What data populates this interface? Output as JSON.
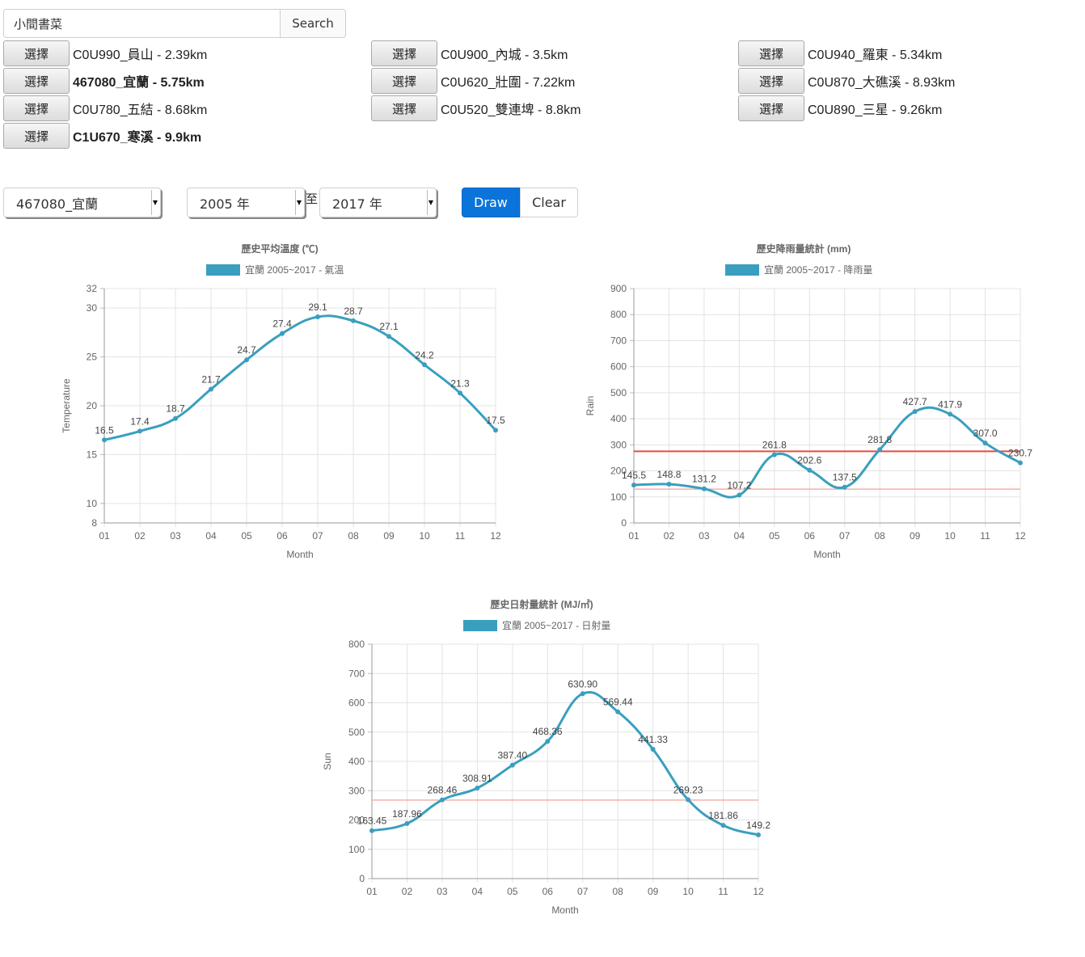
{
  "search": {
    "value": "小間書菜",
    "button_label": "Search"
  },
  "pick_label": "選擇",
  "stations": [
    {
      "label": "C0U990_員山 - 2.39km",
      "bold": false
    },
    {
      "label": "C0U900_內城 - 3.5km",
      "bold": false
    },
    {
      "label": "C0U940_羅東 - 5.34km",
      "bold": false
    },
    {
      "label": "467080_宜蘭 - 5.75km",
      "bold": true
    },
    {
      "label": "C0U620_壯圍 - 7.22km",
      "bold": false
    },
    {
      "label": "C0U870_大礁溪 - 8.93km",
      "bold": false
    },
    {
      "label": "C0U780_五結 - 8.68km",
      "bold": false
    },
    {
      "label": "C0U520_雙連埤 - 8.8km",
      "bold": false
    },
    {
      "label": "C0U890_三星 - 9.26km",
      "bold": false
    },
    {
      "label": "C1U670_寒溪 - 9.9km",
      "bold": true
    }
  ],
  "controls": {
    "station_select": "467080_宜蘭",
    "from_year": "2005 年",
    "to_label": "至",
    "to_year": "2017 年",
    "draw_label": "Draw",
    "clear_label": "Clear"
  },
  "colors": {
    "series": "#3a9fbf",
    "refline": "#e74c3c",
    "primary": "#0a74da"
  },
  "chart_data": [
    {
      "type": "line",
      "title": "歷史平均溫度 (℃)",
      "xlabel": "Month",
      "ylabel": "Temperature",
      "categories": [
        "01",
        "02",
        "03",
        "04",
        "05",
        "06",
        "07",
        "08",
        "09",
        "10",
        "11",
        "12"
      ],
      "ylim": [
        8,
        32
      ],
      "yticks": [
        8,
        10,
        15,
        20,
        25,
        30,
        32
      ],
      "grid": true,
      "legend_position": "top",
      "series": [
        {
          "name": "宜蘭 2005~2017 - 氣溫",
          "values": [
            16.5,
            17.4,
            18.7,
            21.7,
            24.7,
            27.4,
            29.1,
            28.7,
            27.1,
            24.2,
            21.3,
            17.5
          ],
          "labels": [
            "16.5",
            "17.4",
            "18.7",
            "21.7",
            "24.7",
            "27.4",
            "29.1",
            "28.7",
            "27.1",
            "24.2",
            "21.3",
            "17.5"
          ]
        }
      ],
      "reference_lines": []
    },
    {
      "type": "line",
      "title": "歷史降雨量統計 (mm)",
      "xlabel": "Month",
      "ylabel": "Rain",
      "categories": [
        "01",
        "02",
        "03",
        "04",
        "05",
        "06",
        "07",
        "08",
        "09",
        "10",
        "11",
        "12"
      ],
      "ylim": [
        0,
        900
      ],
      "yticks": [
        0,
        100,
        200,
        300,
        400,
        500,
        600,
        700,
        800,
        900
      ],
      "grid": true,
      "legend_position": "top",
      "series": [
        {
          "name": "宜蘭 2005~2017 - 降雨量",
          "values": [
            145.5,
            148.8,
            131.2,
            107.2,
            261.8,
            202.6,
            137.5,
            281.8,
            427.7,
            417.9,
            307.0,
            230.7
          ],
          "labels": [
            "145.5",
            "148.8",
            "131.2",
            "107.2",
            "261.8",
            "202.6",
            "137.5",
            "281.8",
            "427.7",
            "417.9",
            "307.0",
            "230.7"
          ]
        }
      ],
      "reference_lines": [
        {
          "value": 275,
          "style": "strong"
        },
        {
          "value": 130,
          "style": "light"
        }
      ]
    },
    {
      "type": "line",
      "title": "歷史日射量統計 (MJ/㎡)",
      "xlabel": "Month",
      "ylabel": "Sun",
      "categories": [
        "01",
        "02",
        "03",
        "04",
        "05",
        "06",
        "07",
        "08",
        "09",
        "10",
        "11",
        "12"
      ],
      "ylim": [
        0,
        800
      ],
      "yticks": [
        0,
        100,
        200,
        300,
        400,
        500,
        600,
        700,
        800
      ],
      "grid": true,
      "legend_position": "top",
      "series": [
        {
          "name": "宜蘭 2005~2017 - 日射量",
          "values": [
            163.45,
            187.96,
            268.46,
            308.91,
            387.4,
            468.36,
            630.9,
            569.44,
            441.33,
            269.23,
            181.86,
            149.2
          ],
          "labels": [
            "163.45",
            "187.96",
            "268.46",
            "308.91",
            "387.40",
            "468.36",
            "630.90",
            "569.44",
            "441.33",
            "269.23",
            "181.86",
            "149.2"
          ]
        }
      ],
      "reference_lines": [
        {
          "value": 268,
          "style": "light"
        }
      ]
    }
  ]
}
